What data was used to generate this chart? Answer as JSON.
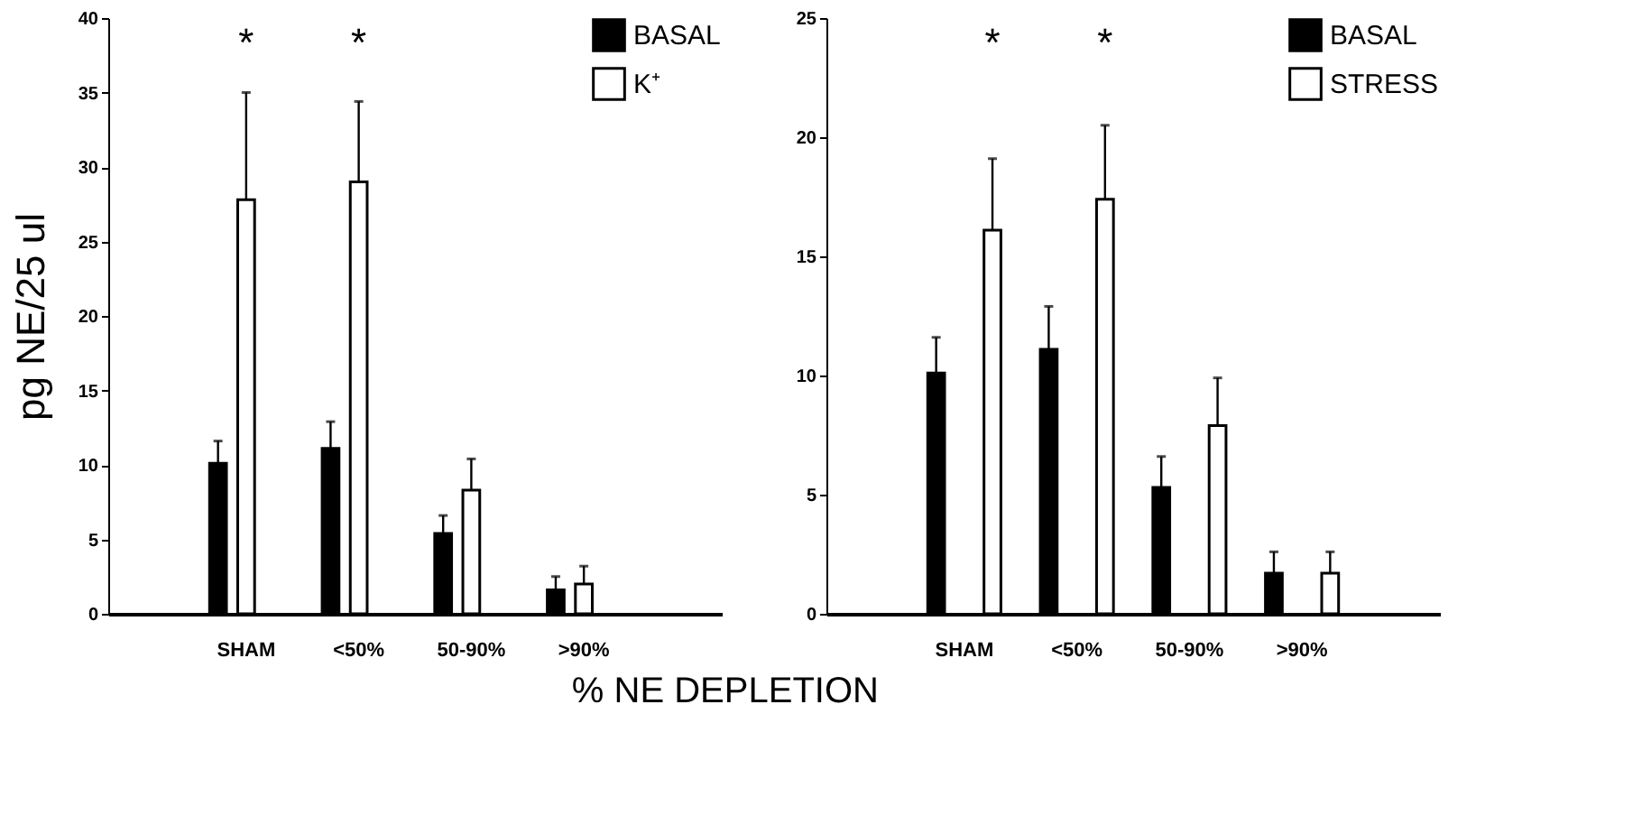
{
  "chart_data": [
    {
      "type": "bar",
      "ylabel": "pg NE/25 ul",
      "xlabel": "% NE DEPLETION",
      "categories": [
        "SHAM",
        "<50%",
        "50-90%",
        ">90%"
      ],
      "ylim": [
        0,
        40
      ],
      "yticks": [
        0,
        5,
        10,
        15,
        20,
        25,
        30,
        35,
        40
      ],
      "grid": false,
      "legend": "top right",
      "series": [
        {
          "name": "BASAL",
          "color": "#000000",
          "values": [
            10.1,
            11.1,
            5.4,
            1.6
          ],
          "errors": [
            [
              10.1,
              11.6
            ],
            [
              11.1,
              12.9
            ],
            [
              5.4,
              6.6
            ],
            [
              1.6,
              2.5
            ]
          ]
        },
        {
          "name": "K⁺",
          "color": "#ffffff",
          "values": [
            27.8,
            29.0,
            8.3,
            2.0
          ],
          "errors": [
            [
              27.8,
              35.0
            ],
            [
              29.0,
              34.4
            ],
            [
              8.3,
              10.4
            ],
            [
              2.0,
              3.2
            ]
          ]
        }
      ],
      "annotations": [
        "*",
        "*"
      ]
    },
    {
      "type": "bar",
      "categories": [
        "SHAM",
        "<50%",
        "50-90%",
        ">90%"
      ],
      "ylim": [
        0,
        25
      ],
      "yticks": [
        0,
        5,
        10,
        15,
        20,
        25
      ],
      "grid": false,
      "legend": "top right",
      "series": [
        {
          "name": "BASAL",
          "color": "#000000",
          "values": [
            10.1,
            11.1,
            5.3,
            1.7
          ],
          "errors": [
            [
              10.1,
              11.6
            ],
            [
              11.1,
              12.9
            ],
            [
              5.3,
              6.6
            ],
            [
              1.7,
              2.6
            ]
          ]
        },
        {
          "name": "STRESS",
          "color": "#ffffff",
          "values": [
            16.1,
            17.4,
            7.9,
            1.7
          ],
          "errors": [
            [
              16.1,
              19.1
            ],
            [
              17.4,
              20.5
            ],
            [
              7.9,
              9.9
            ],
            [
              1.7,
              2.6
            ]
          ]
        }
      ],
      "annotations": [
        "*",
        "*"
      ]
    }
  ]
}
